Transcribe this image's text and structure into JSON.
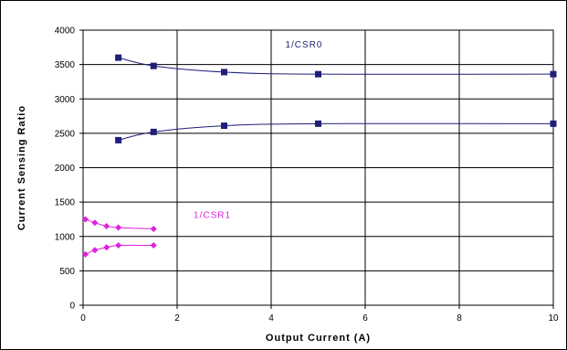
{
  "chart_data": {
    "type": "line",
    "title": "",
    "xlabel": "Output Current (A)",
    "ylabel": "Current Sensing Ratio",
    "xlim": [
      0,
      10
    ],
    "ylim": [
      0,
      4000
    ],
    "x_ticks": [
      0,
      2,
      4,
      6,
      8,
      10
    ],
    "y_ticks": [
      0,
      500,
      1000,
      1500,
      2000,
      2500,
      3000,
      3500,
      4000
    ],
    "grid": "both",
    "legend": "none",
    "annotations": [
      {
        "text": "1/CSR0",
        "color": "#1f1f7a"
      },
      {
        "text": "1/CSR1",
        "color": "#e020e0"
      }
    ],
    "series": [
      {
        "x": [
          0.75,
          1.5,
          3,
          5,
          10
        ],
        "y": [
          3600,
          3480,
          3390,
          3360,
          3360
        ],
        "color": "#1f1f7a",
        "marker": "square"
      },
      {
        "x": [
          0.75,
          1.5,
          3,
          5,
          10
        ],
        "y": [
          2400,
          2520,
          2610,
          2640,
          2640
        ],
        "color": "#1f1f7a",
        "marker": "square"
      },
      {
        "x": [
          0.05,
          0.25,
          0.5,
          0.75,
          1.5
        ],
        "y": [
          1250,
          1200,
          1150,
          1130,
          1110
        ],
        "color": "#e020e0",
        "marker": "diamond"
      },
      {
        "x": [
          0.05,
          0.25,
          0.5,
          0.75,
          1.5
        ],
        "y": [
          740,
          800,
          840,
          870,
          870
        ],
        "color": "#e020e0",
        "marker": "diamond"
      }
    ]
  }
}
